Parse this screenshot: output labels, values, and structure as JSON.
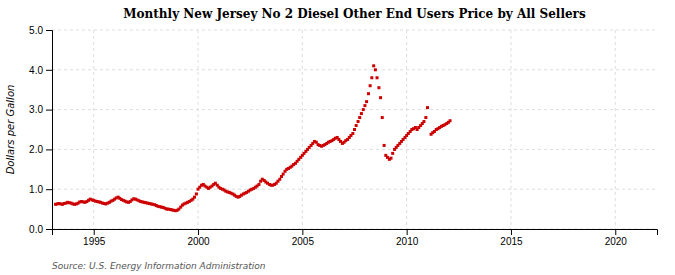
{
  "chart_data": {
    "type": "scatter",
    "title": "Monthly New Jersey No 2 Diesel Other End Users Price by All Sellers",
    "ylabel": "Dollars per Gallon",
    "source": "Source: U.S. Energy Information Administration",
    "color": "#cc0000",
    "marker": "square",
    "grid": true,
    "xlim": [
      1993.0,
      2022.0
    ],
    "ylim": [
      0.0,
      5.0
    ],
    "xticks": [
      1995,
      2000,
      2005,
      2010,
      2015,
      2020
    ],
    "yticks": [
      {
        "value": 0.0,
        "label": "0.0"
      },
      {
        "value": 1.0,
        "label": "1.0"
      },
      {
        "value": 2.0,
        "label": "2.0"
      },
      {
        "value": 3.0,
        "label": "3.0"
      },
      {
        "value": 4.0,
        "label": "4.0"
      },
      {
        "value": 5.0,
        "label": "5.0"
      }
    ],
    "x": [
      1993.17,
      1993.25,
      1993.33,
      1993.42,
      1993.5,
      1993.58,
      1993.67,
      1993.75,
      1993.83,
      1993.92,
      1994.0,
      1994.08,
      1994.17,
      1994.25,
      1994.33,
      1994.42,
      1994.5,
      1994.58,
      1994.67,
      1994.75,
      1994.83,
      1994.92,
      1995.0,
      1995.08,
      1995.17,
      1995.25,
      1995.33,
      1995.42,
      1995.5,
      1995.58,
      1995.67,
      1995.75,
      1995.83,
      1995.92,
      1996.0,
      1996.08,
      1996.17,
      1996.25,
      1996.33,
      1996.42,
      1996.5,
      1996.58,
      1996.67,
      1996.75,
      1996.83,
      1996.92,
      1997.0,
      1997.08,
      1997.17,
      1997.25,
      1997.33,
      1997.42,
      1997.5,
      1997.58,
      1997.67,
      1997.75,
      1997.83,
      1997.92,
      1998.0,
      1998.08,
      1998.17,
      1998.25,
      1998.33,
      1998.42,
      1998.5,
      1998.58,
      1998.67,
      1998.75,
      1998.83,
      1998.92,
      1999.0,
      1999.08,
      1999.17,
      1999.25,
      1999.33,
      1999.42,
      1999.5,
      1999.58,
      1999.67,
      1999.75,
      1999.83,
      1999.92,
      2000.0,
      2000.08,
      2000.17,
      2000.25,
      2000.33,
      2000.42,
      2000.5,
      2000.58,
      2000.67,
      2000.75,
      2000.83,
      2000.92,
      2001.0,
      2001.08,
      2001.17,
      2001.25,
      2001.33,
      2001.42,
      2001.5,
      2001.58,
      2001.67,
      2001.75,
      2001.83,
      2001.92,
      2002.0,
      2002.08,
      2002.17,
      2002.25,
      2002.33,
      2002.42,
      2002.5,
      2002.58,
      2002.67,
      2002.75,
      2002.83,
      2002.92,
      2003.0,
      2003.08,
      2003.17,
      2003.25,
      2003.33,
      2003.42,
      2003.5,
      2003.58,
      2003.67,
      2003.75,
      2003.83,
      2003.92,
      2004.0,
      2004.08,
      2004.17,
      2004.25,
      2004.33,
      2004.42,
      2004.5,
      2004.58,
      2004.67,
      2004.75,
      2004.83,
      2004.92,
      2005.0,
      2005.08,
      2005.17,
      2005.25,
      2005.33,
      2005.42,
      2005.5,
      2005.58,
      2005.67,
      2005.75,
      2005.83,
      2005.92,
      2006.0,
      2006.08,
      2006.17,
      2006.25,
      2006.33,
      2006.42,
      2006.5,
      2006.58,
      2006.67,
      2006.75,
      2006.83,
      2006.92,
      2007.0,
      2007.08,
      2007.17,
      2007.25,
      2007.33,
      2007.42,
      2007.5,
      2007.58,
      2007.67,
      2007.75,
      2007.83,
      2007.92,
      2008.0,
      2008.08,
      2008.17,
      2008.25,
      2008.33,
      2008.42,
      2008.5,
      2008.58,
      2008.67,
      2008.75,
      2008.83,
      2008.92,
      2009.0,
      2009.08,
      2009.17,
      2009.25,
      2009.33,
      2009.42,
      2009.5,
      2009.58,
      2009.67,
      2009.75,
      2009.83,
      2009.92,
      2010.0,
      2010.08,
      2010.17,
      2010.25,
      2010.33,
      2010.42,
      2010.5,
      2010.58,
      2010.67,
      2010.75,
      2010.83,
      2010.92,
      2011.0,
      2011.17,
      2011.25,
      2011.33,
      2011.42,
      2011.5,
      2011.58,
      2011.67,
      2011.75,
      2011.83,
      2011.92,
      2012.0,
      2012.08
    ],
    "values": [
      0.62,
      0.63,
      0.64,
      0.63,
      0.62,
      0.64,
      0.65,
      0.67,
      0.66,
      0.65,
      0.63,
      0.62,
      0.63,
      0.65,
      0.68,
      0.69,
      0.68,
      0.67,
      0.69,
      0.72,
      0.75,
      0.73,
      0.72,
      0.7,
      0.69,
      0.68,
      0.67,
      0.65,
      0.64,
      0.63,
      0.65,
      0.67,
      0.7,
      0.72,
      0.75,
      0.78,
      0.8,
      0.77,
      0.74,
      0.72,
      0.7,
      0.68,
      0.67,
      0.69,
      0.73,
      0.76,
      0.75,
      0.73,
      0.71,
      0.69,
      0.68,
      0.67,
      0.66,
      0.65,
      0.64,
      0.63,
      0.62,
      0.61,
      0.59,
      0.57,
      0.56,
      0.55,
      0.54,
      0.52,
      0.5,
      0.5,
      0.49,
      0.48,
      0.47,
      0.46,
      0.47,
      0.5,
      0.55,
      0.6,
      0.63,
      0.65,
      0.67,
      0.69,
      0.72,
      0.75,
      0.8,
      0.88,
      1.0,
      1.05,
      1.1,
      1.12,
      1.08,
      1.05,
      1.02,
      1.05,
      1.08,
      1.12,
      1.15,
      1.1,
      1.05,
      1.02,
      1.0,
      0.98,
      0.95,
      0.93,
      0.92,
      0.9,
      0.88,
      0.85,
      0.82,
      0.8,
      0.82,
      0.85,
      0.88,
      0.9,
      0.92,
      0.95,
      0.98,
      1.0,
      1.02,
      1.05,
      1.08,
      1.12,
      1.2,
      1.25,
      1.22,
      1.18,
      1.15,
      1.12,
      1.1,
      1.1,
      1.12,
      1.15,
      1.2,
      1.25,
      1.32,
      1.38,
      1.45,
      1.5,
      1.52,
      1.55,
      1.58,
      1.62,
      1.65,
      1.7,
      1.75,
      1.8,
      1.85,
      1.9,
      1.95,
      2.0,
      2.05,
      2.1,
      2.15,
      2.2,
      2.18,
      2.12,
      2.1,
      2.08,
      2.1,
      2.12,
      2.15,
      2.18,
      2.2,
      2.22,
      2.25,
      2.28,
      2.3,
      2.25,
      2.2,
      2.15,
      2.18,
      2.22,
      2.25,
      2.3,
      2.35,
      2.4,
      2.5,
      2.6,
      2.7,
      2.8,
      2.9,
      3.0,
      3.1,
      3.2,
      3.4,
      3.6,
      3.8,
      4.1,
      4.0,
      3.8,
      3.55,
      3.3,
      2.8,
      2.1,
      1.85,
      1.8,
      1.75,
      1.78,
      1.9,
      2.0,
      2.05,
      2.1,
      2.15,
      2.2,
      2.25,
      2.3,
      2.35,
      2.4,
      2.45,
      2.5,
      2.52,
      2.55,
      2.5,
      2.55,
      2.6,
      2.65,
      2.7,
      2.8,
      3.05,
      2.38,
      2.42,
      2.45,
      2.5,
      2.52,
      2.55,
      2.58,
      2.6,
      2.62,
      2.65,
      2.68,
      2.72
    ]
  }
}
